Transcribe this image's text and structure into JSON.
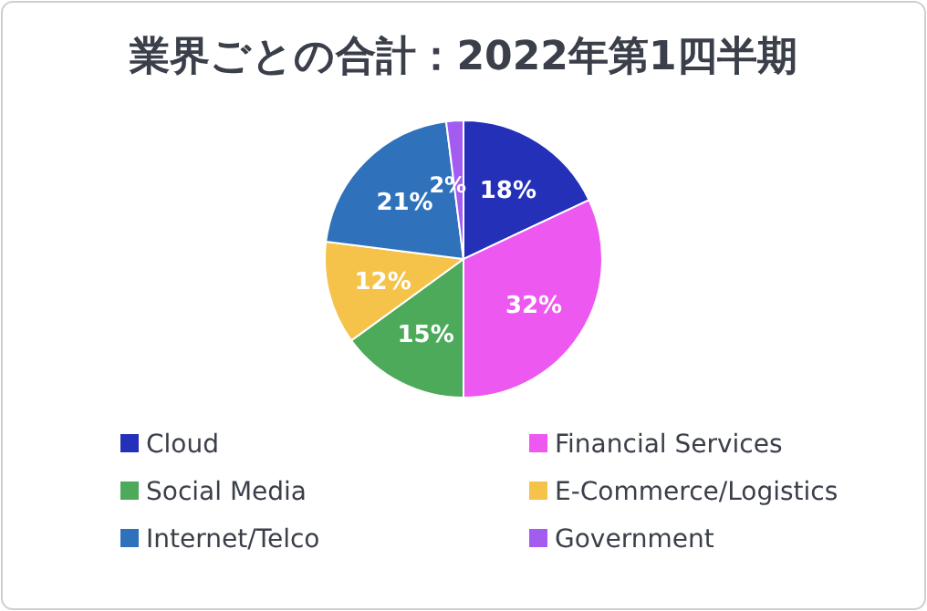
{
  "chart_data": {
    "type": "pie",
    "title": "業界ごとの合計：2022年第1四半期",
    "categories": [
      "Cloud",
      "Financial Services",
      "Social Media",
      "E-Commerce/Logistics",
      "Internet/Telco",
      "Government"
    ],
    "values": [
      18,
      32,
      15,
      12,
      21,
      2
    ],
    "colors": [
      "#2430b8",
      "#ec58f0",
      "#4caa5a",
      "#f5c24a",
      "#2f72bb",
      "#a45cf0"
    ],
    "value_labels": [
      "18%",
      "32%",
      "15%",
      "12%",
      "21%",
      "2%"
    ],
    "legend": "bottom"
  }
}
